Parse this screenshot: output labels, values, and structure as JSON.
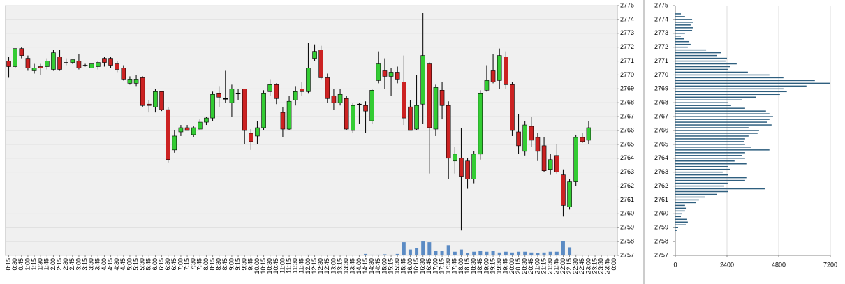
{
  "chart_data": [
    {
      "type": "candlestick",
      "categories": [
        "0:15",
        "0:30",
        "0:45",
        "1:00",
        "1:15",
        "1:30",
        "1:45",
        "2:00",
        "2:15",
        "2:30",
        "2:45",
        "3:00",
        "3:15",
        "3:30",
        "3:45",
        "4:00",
        "4:15",
        "4:30",
        "4:45",
        "5:00",
        "5:15",
        "5:30",
        "5:45",
        "6:00",
        "6:15",
        "6:30",
        "6:45",
        "7:00",
        "7:15",
        "7:30",
        "7:45",
        "8:00",
        "8:15",
        "8:30",
        "8:45",
        "9:00",
        "9:15",
        "9:30",
        "9:45",
        "10:00",
        "10:15",
        "10:30",
        "10:45",
        "11:00",
        "11:15",
        "11:30",
        "11:45",
        "12:00",
        "12:15",
        "12:30",
        "12:45",
        "13:00",
        "13:15",
        "13:30",
        "13:45",
        "14:00",
        "14:15",
        "14:30",
        "14:45",
        "15:00",
        "15:15",
        "15:30",
        "15:45",
        "16:00",
        "16:15",
        "16:30",
        "16:45",
        "17:00",
        "17:15",
        "17:30",
        "17:45",
        "18:00",
        "18:15",
        "18:30",
        "18:45",
        "19:00",
        "19:15",
        "19:30",
        "19:45",
        "20:00",
        "20:15",
        "20:30",
        "20:45",
        "21:00",
        "21:15",
        "21:30",
        "21:45",
        "22:00",
        "22:15",
        "22:30",
        "22:45",
        "23:00",
        "23:15",
        "23:30",
        "23:45",
        "0:00"
      ],
      "open": [
        2771.0,
        2770.6,
        2771.9,
        2771.2,
        2770.3,
        2770.6,
        2770.6,
        2770.4,
        2771.3,
        2770.9,
        2770.9,
        2771.0,
        2770.7,
        2770.5,
        2770.6,
        2771.2,
        2771.2,
        2770.8,
        2770.5,
        2769.4,
        2769.4,
        2769.8,
        2767.9,
        2767.7,
        2768.8,
        2767.5,
        2764.6,
        2765.9,
        2766.2,
        2765.7,
        2766.1,
        2766.6,
        2766.9,
        2768.7,
        2768.3,
        2768.0,
        2768.7,
        2769.0,
        2765.8,
        2765.6,
        2766.2,
        2768.8,
        2769.3,
        2767.3,
        2766.1,
        2768.2,
        2769.0,
        2768.8,
        2771.2,
        2771.8,
        2769.8,
        2768.5,
        2768.0,
        2768.3,
        2766.0,
        2767.9,
        2767.8,
        2766.7,
        2769.6,
        2770.3,
        2769.9,
        2770.2,
        2769.5,
        2767.7,
        2766.1,
        2767.9,
        2770.8,
        2766.1,
        2768.9,
        2767.8,
        2763.8,
        2764.0,
        2763.8,
        2762.5,
        2764.3,
        2768.9,
        2770.3,
        2769.6,
        2771.3,
        2769.3,
        2765.9,
        2764.5,
        2766.3,
        2765.5,
        2764.9,
        2763.2,
        2764.2,
        2762.8,
        2760.5,
        2762.3,
        2765.5,
        2765.3,
        null,
        null,
        null,
        null
      ],
      "high": [
        2771.3,
        2771.9,
        2772.0,
        2771.4,
        2770.8,
        2770.8,
        2771.2,
        2771.8,
        2771.8,
        2771.2,
        2771.1,
        2771.5,
        2770.8,
        2770.8,
        2771.0,
        2771.3,
        2771.3,
        2771.0,
        2770.7,
        2769.9,
        2770.0,
        2769.9,
        2768.2,
        2769.0,
        2768.8,
        2767.7,
        2766.0,
        2766.4,
        2766.4,
        2766.3,
        2766.8,
        2767.0,
        2768.8,
        2769.2,
        2770.3,
        2769.3,
        2769.0,
        2769.0,
        2766.1,
        2766.7,
        2768.9,
        2769.7,
        2769.4,
        2767.7,
        2768.5,
        2769.2,
        2769.5,
        2772.3,
        2772.2,
        2772.1,
        2770.1,
        2769.0,
        2769.0,
        2768.5,
        2768.0,
        2768.0,
        2768.1,
        2769.0,
        2771.7,
        2771.2,
        2770.5,
        2770.6,
        2771.4,
        2768.2,
        2770.0,
        2774.5,
        2770.9,
        2769.3,
        2769.5,
        2768.1,
        2764.8,
        2766.2,
        2764.0,
        2764.5,
        2768.9,
        2770.7,
        2771.5,
        2771.9,
        2771.7,
        2769.5,
        2767.2,
        2766.7,
        2767.0,
        2765.8,
        2765.5,
        2764.3,
        2765.0,
        2763.2,
        2762.5,
        2765.7,
        2765.8,
        2766.7,
        null,
        null,
        null,
        null
      ],
      "low": [
        2769.8,
        2770.5,
        2771.2,
        2770.3,
        2770.1,
        2770.0,
        2770.4,
        2770.3,
        2770.3,
        2770.7,
        2770.8,
        2770.4,
        2770.6,
        2770.5,
        2770.4,
        2770.6,
        2770.5,
        2770.2,
        2769.6,
        2769.3,
        2769.2,
        2767.7,
        2767.3,
        2767.3,
        2767.4,
        2763.7,
        2764.4,
        2765.6,
        2766.0,
        2765.5,
        2766.0,
        2766.4,
        2766.7,
        2767.7,
        2768.0,
        2767.0,
        2768.2,
        2765.0,
        2764.6,
        2765.0,
        2766.0,
        2768.5,
        2767.9,
        2765.5,
        2766.0,
        2767.8,
        2768.5,
        2768.7,
        2771.0,
        2769.7,
        2768.0,
        2767.5,
        2767.8,
        2766.0,
        2765.8,
        2766.5,
        2765.8,
        2766.5,
        2769.4,
        2769.0,
        2768.5,
        2769.4,
        2766.4,
        2766.0,
        2766.0,
        2766.5,
        2762.9,
        2765.6,
        2766.8,
        2762.5,
        2762.9,
        2758.8,
        2761.8,
        2762.2,
        2763.9,
        2768.8,
        2769.4,
        2769.0,
        2769.0,
        2765.6,
        2764.3,
        2764.2,
        2764.8,
        2763.8,
        2763.0,
        2762.8,
        2762.9,
        2759.8,
        2760.3,
        2762.0,
        2765.1,
        2765.0,
        null,
        null,
        null,
        null
      ],
      "close": [
        2770.6,
        2771.9,
        2771.4,
        2770.5,
        2770.5,
        2770.5,
        2771.0,
        2771.6,
        2770.4,
        2770.9,
        2771.1,
        2770.5,
        2770.7,
        2770.8,
        2770.9,
        2770.9,
        2770.7,
        2770.4,
        2769.7,
        2769.7,
        2769.7,
        2767.8,
        2767.8,
        2768.8,
        2767.5,
        2763.9,
        2765.6,
        2766.2,
        2766.0,
        2766.2,
        2766.6,
        2766.9,
        2768.6,
        2768.4,
        2768.3,
        2769.0,
        2768.7,
        2766.0,
        2765.2,
        2766.2,
        2768.7,
        2769.3,
        2768.3,
        2766.1,
        2768.1,
        2768.8,
        2768.8,
        2770.5,
        2771.7,
        2769.8,
        2768.3,
        2768.0,
        2768.6,
        2766.1,
        2767.8,
        2767.9,
        2767.4,
        2768.9,
        2770.8,
        2769.9,
        2770.2,
        2769.7,
        2766.9,
        2766.0,
        2767.8,
        2771.4,
        2766.2,
        2769.1,
        2767.8,
        2764.0,
        2764.3,
        2762.7,
        2762.5,
        2764.3,
        2768.7,
        2769.6,
        2769.5,
        2771.4,
        2769.3,
        2766.0,
        2764.9,
        2766.4,
        2765.3,
        2764.5,
        2763.1,
        2763.9,
        2763.0,
        2760.6,
        2762.3,
        2765.5,
        2765.2,
        2766.2,
        null,
        null,
        null,
        null
      ],
      "volume": [
        0.3,
        0.3,
        0.3,
        0.3,
        0.3,
        0.3,
        0.3,
        0.3,
        0.3,
        0.3,
        0.3,
        0.3,
        0.3,
        0.3,
        0.3,
        0.3,
        0.3,
        0.3,
        0.3,
        0.3,
        0.3,
        0.3,
        0.3,
        0.3,
        0.3,
        0.3,
        0.3,
        0.3,
        0.3,
        0.3,
        0.3,
        0.3,
        0.3,
        0.3,
        0.3,
        0.3,
        0.3,
        0.3,
        0.3,
        0.3,
        0.3,
        0.3,
        0.3,
        0.3,
        0.3,
        0.3,
        0.3,
        1,
        0.3,
        0.3,
        0.3,
        0.3,
        0.3,
        0.5,
        0.5,
        0.5,
        2,
        1,
        1,
        1.5,
        1,
        2,
        18,
        8,
        10,
        19,
        18,
        6,
        6,
        14,
        5,
        8,
        3,
        5,
        6,
        5,
        6,
        4,
        5,
        4,
        5,
        5,
        4,
        3,
        4,
        5,
        5,
        20,
        11,
        1,
        0.5,
        0.5,
        null,
        null,
        null,
        null
      ],
      "up_color": "#33cc33",
      "down_color": "#cc2222",
      "volume_color": "#5b8bc4",
      "ylim": [
        2757,
        2775
      ],
      "yticks": [
        2757,
        2758,
        2759,
        2760,
        2761,
        2762,
        2763,
        2764,
        2765,
        2766,
        2767,
        2768,
        2769,
        2770,
        2771,
        2772,
        2773,
        2774,
        2775
      ],
      "grid": true
    },
    {
      "type": "barh",
      "categories": [
        2774.4,
        2774.2,
        2774.0,
        2773.8,
        2773.6,
        2773.4,
        2773.2,
        2773.0,
        2772.8,
        2772.6,
        2772.4,
        2772.2,
        2772.0,
        2771.8,
        2771.6,
        2771.4,
        2771.2,
        2771.0,
        2770.8,
        2770.6,
        2770.4,
        2770.2,
        2770.0,
        2769.8,
        2769.6,
        2769.4,
        2769.2,
        2769.0,
        2768.8,
        2768.6,
        2768.4,
        2768.2,
        2768.0,
        2767.8,
        2767.6,
        2767.4,
        2767.2,
        2767.0,
        2766.8,
        2766.6,
        2766.4,
        2766.2,
        2766.0,
        2765.8,
        2765.6,
        2765.4,
        2765.2,
        2765.0,
        2764.8,
        2764.6,
        2764.4,
        2764.2,
        2764.0,
        2763.8,
        2763.6,
        2763.4,
        2763.2,
        2763.0,
        2762.8,
        2762.6,
        2762.4,
        2762.2,
        2762.0,
        2761.8,
        2761.6,
        2761.4,
        2761.2,
        2761.0,
        2760.8,
        2760.6,
        2760.4,
        2760.2,
        2760.0,
        2759.8,
        2759.6,
        2759.4,
        2759.2,
        2759.0,
        2758.8
      ],
      "values": [
        260,
        450,
        780,
        840,
        710,
        810,
        780,
        450,
        260,
        390,
        650,
        710,
        580,
        1430,
        2140,
        1940,
        2400,
        2330,
        2850,
        2530,
        2430,
        3370,
        4370,
        5020,
        6480,
        7190,
        6090,
        5020,
        5180,
        4860,
        3730,
        3080,
        2430,
        2590,
        3240,
        4210,
        4370,
        4540,
        4370,
        4280,
        4470,
        3400,
        3890,
        3820,
        3400,
        3240,
        3180,
        3240,
        3500,
        4370,
        3240,
        3080,
        3240,
        2750,
        3300,
        2430,
        2530,
        2200,
        2460,
        3300,
        3240,
        2430,
        2270,
        4150,
        2460,
        1940,
        1360,
        1100,
        970,
        450,
        520,
        450,
        320,
        260,
        550,
        580,
        520,
        130,
        60
      ],
      "color": "#2f5f7f",
      "xlim": [
        0,
        7200
      ],
      "xticks": [
        0,
        2400,
        4800,
        7200
      ],
      "ylim": [
        2757,
        2775
      ],
      "yticks": [
        2757,
        2758,
        2759,
        2760,
        2761,
        2762,
        2763,
        2764,
        2765,
        2766,
        2767,
        2768,
        2769,
        2770,
        2771,
        2772,
        2773,
        2774,
        2775
      ],
      "grid": true
    }
  ]
}
